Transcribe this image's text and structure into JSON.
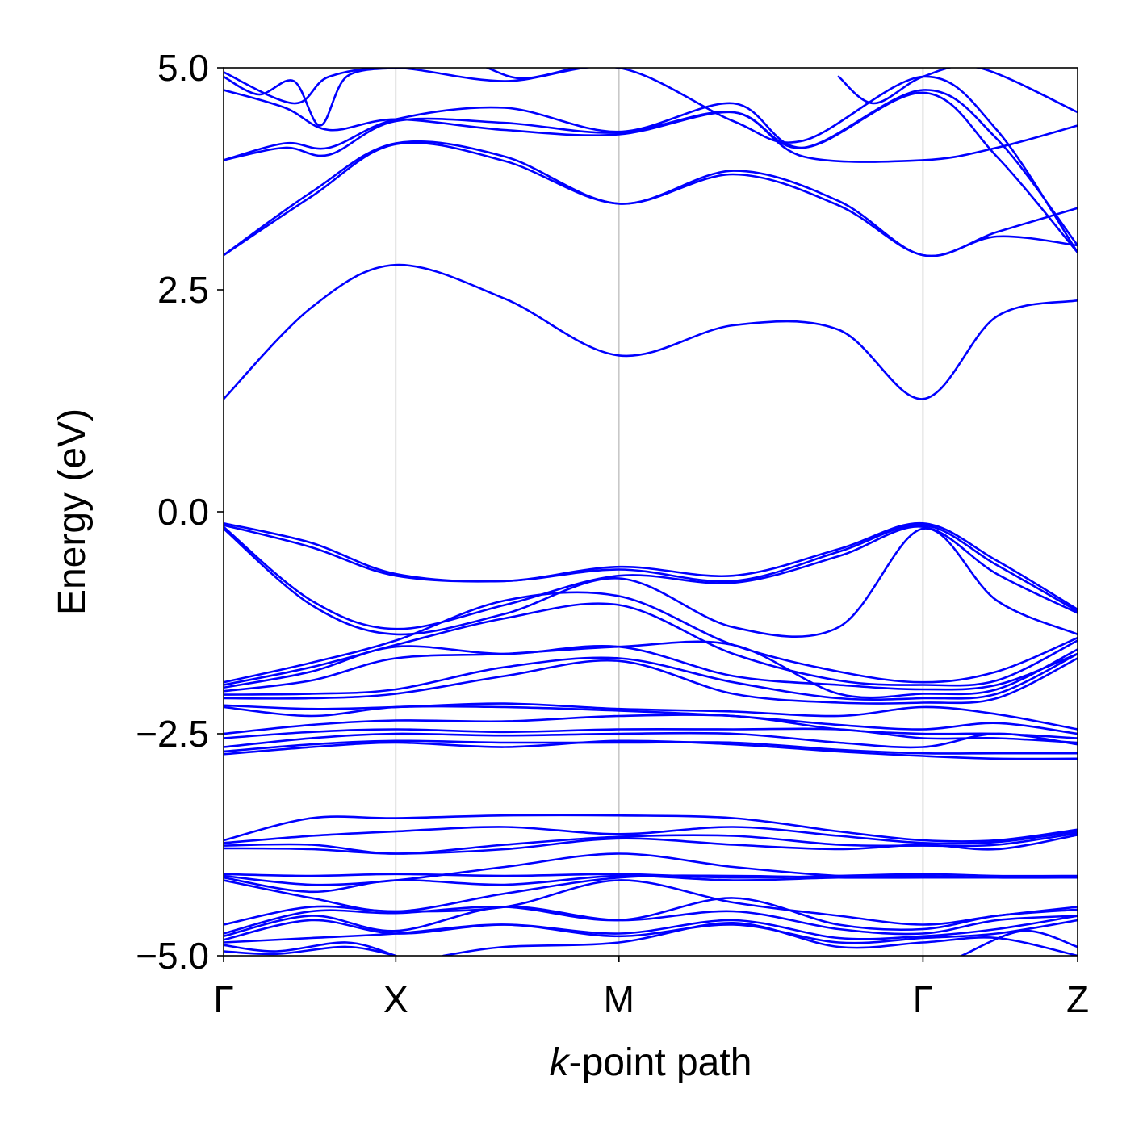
{
  "chart_data": {
    "type": "line",
    "title": "",
    "xlabel_italic": "k",
    "xlabel_rest": "-point path",
    "ylabel": "Energy (eV)",
    "ylim": [
      -5.0,
      5.0
    ],
    "xlim": [
      0,
      4.86
    ],
    "grid": false,
    "legend": "none",
    "yticks": [
      {
        "value": -5.0,
        "label": "−5.0"
      },
      {
        "value": -2.5,
        "label": "−2.5"
      },
      {
        "value": 0.0,
        "label": "0.0"
      },
      {
        "value": 2.5,
        "label": "2.5"
      },
      {
        "value": 5.0,
        "label": "5.0"
      }
    ],
    "high_symmetry_points": [
      {
        "label": "Γ",
        "x": 0.0
      },
      {
        "label": "X",
        "x": 0.98
      },
      {
        "label": "M",
        "x": 2.25
      },
      {
        "label": "Γ",
        "x": 3.98
      },
      {
        "label": "Z",
        "x": 4.86
      }
    ],
    "colors": {
      "bands": "#0000ff",
      "symmetry_lines": "#c8c8c8",
      "axes": "#000000"
    },
    "series": [
      {
        "x": [
          0,
          0.5,
          0.98,
          1.6,
          2.25,
          2.9,
          3.5,
          3.98,
          4.4,
          4.86
        ],
        "y": [
          1.27,
          2.3,
          2.78,
          2.4,
          1.76,
          2.1,
          2.05,
          1.27,
          2.2,
          2.38
        ]
      },
      {
        "x": [
          0,
          0.5,
          0.98,
          1.6,
          2.25,
          2.9,
          3.5,
          3.98,
          4.4,
          4.86
        ],
        "y": [
          2.89,
          3.6,
          4.15,
          4.0,
          3.47,
          3.84,
          3.5,
          2.89,
          3.15,
          3.42
        ]
      },
      {
        "x": [
          0,
          0.5,
          0.98,
          1.6,
          2.25,
          2.9,
          3.5,
          3.98,
          4.4,
          4.86
        ],
        "y": [
          2.89,
          3.55,
          4.14,
          3.95,
          3.47,
          3.8,
          3.45,
          2.89,
          3.1,
          3.0
        ]
      },
      {
        "x": [
          0,
          0.35,
          0.6,
          0.98,
          1.6,
          2.25,
          2.9,
          3.3,
          3.98,
          4.4,
          4.86
        ],
        "y": [
          3.96,
          4.1,
          4.02,
          4.4,
          4.38,
          4.27,
          4.5,
          4.0,
          3.96,
          4.1,
          4.35
        ]
      },
      {
        "x": [
          0,
          0.35,
          0.6,
          0.98,
          1.6,
          2.25,
          2.9,
          3.3,
          3.98,
          4.4,
          4.86
        ],
        "y": [
          3.96,
          4.15,
          4.1,
          4.42,
          4.55,
          4.28,
          4.6,
          4.1,
          4.72,
          4.0,
          2.92
        ]
      },
      {
        "x": [
          0,
          0.35,
          0.6,
          0.98,
          1.6,
          2.25,
          2.9,
          3.3,
          3.98,
          4.4,
          4.86
        ],
        "y": [
          4.75,
          4.55,
          4.3,
          4.42,
          4.3,
          4.25,
          4.5,
          4.1,
          4.75,
          4.2,
          3.0
        ]
      },
      {
        "x": [
          0,
          0.2,
          0.4,
          0.55,
          0.7,
          0.98
        ],
        "y": [
          4.9,
          4.7,
          4.85,
          4.35,
          4.9,
          5.0
        ]
      },
      {
        "x": [
          0,
          0.4,
          0.6,
          0.98,
          1.6,
          2.25,
          2.9,
          3.3,
          3.98,
          4.4,
          4.86
        ],
        "y": [
          4.95,
          4.6,
          4.9,
          5.0,
          4.85,
          5.0,
          4.4,
          4.18,
          4.9,
          4.3,
          2.92
        ]
      },
      {
        "x": [
          1.5,
          1.7,
          2.0
        ],
        "y": [
          5.0,
          4.88,
          5.0
        ]
      },
      {
        "x": [
          3.5,
          3.7,
          3.98,
          4.3,
          4.86
        ],
        "y": [
          4.9,
          4.6,
          4.9,
          5.0,
          4.5
        ]
      },
      {
        "x": [
          0,
          0.5,
          0.98,
          1.6,
          2.25,
          2.9,
          3.5,
          3.98,
          4.4,
          4.86
        ],
        "y": [
          -0.13,
          -0.35,
          -0.7,
          -0.78,
          -0.62,
          -0.72,
          -0.42,
          -0.13,
          -0.55,
          -1.1
        ]
      },
      {
        "x": [
          0,
          0.5,
          0.98,
          1.6,
          2.25,
          2.9,
          3.5,
          3.98,
          4.4,
          4.86
        ],
        "y": [
          -0.15,
          -0.4,
          -0.72,
          -0.78,
          -0.65,
          -0.78,
          -0.45,
          -0.15,
          -0.6,
          -1.12
        ]
      },
      {
        "x": [
          0,
          0.5,
          0.98,
          1.6,
          2.25,
          2.9,
          3.5,
          3.98,
          4.4,
          4.86
        ],
        "y": [
          -0.17,
          -1.0,
          -1.32,
          -1.05,
          -0.72,
          -0.8,
          -0.5,
          -0.17,
          -0.7,
          -1.14
        ]
      },
      {
        "x": [
          0,
          0.5,
          0.98,
          1.6,
          2.25,
          2.9,
          3.5,
          3.98,
          4.4,
          4.86
        ],
        "y": [
          -0.19,
          -1.05,
          -1.38,
          -1.15,
          -0.75,
          -1.3,
          -1.3,
          -0.19,
          -1.0,
          -1.38
        ]
      },
      {
        "x": [
          0,
          0.5,
          0.98,
          1.6,
          2.25,
          2.9,
          3.5,
          3.98,
          4.4,
          4.86
        ],
        "y": [
          -1.92,
          -1.7,
          -1.45,
          -1.0,
          -0.95,
          -1.5,
          -1.8,
          -1.92,
          -1.8,
          -1.42
        ]
      },
      {
        "x": [
          0,
          0.5,
          0.98,
          1.6,
          2.25,
          2.9,
          3.5,
          3.98,
          4.4,
          4.86
        ],
        "y": [
          -1.95,
          -1.75,
          -1.5,
          -1.2,
          -1.05,
          -1.6,
          -1.9,
          -1.95,
          -1.9,
          -1.45
        ]
      },
      {
        "x": [
          0,
          0.5,
          0.98,
          1.6,
          2.25,
          2.9,
          3.5,
          3.98,
          4.4,
          4.86
        ],
        "y": [
          -1.98,
          -1.8,
          -1.52,
          -1.6,
          -1.52,
          -1.85,
          -1.95,
          -2.0,
          -1.95,
          -1.6
        ]
      },
      {
        "x": [
          0,
          0.5,
          0.98,
          1.6,
          2.25,
          2.9,
          3.5,
          3.98,
          4.4,
          4.86
        ],
        "y": [
          -2.02,
          -1.9,
          -1.65,
          -1.6,
          -1.52,
          -1.5,
          -2.05,
          -2.05,
          -2.0,
          -1.55
        ]
      },
      {
        "x": [
          0,
          0.5,
          0.98,
          1.6,
          2.25,
          2.9,
          3.5,
          3.98,
          4.4,
          4.86
        ],
        "y": [
          -2.06,
          -2.05,
          -2.0,
          -1.75,
          -1.65,
          -1.92,
          -2.1,
          -2.1,
          -2.05,
          -1.6
        ]
      },
      {
        "x": [
          0,
          0.5,
          0.98,
          1.6,
          2.25,
          2.9,
          3.5,
          3.98,
          4.4,
          4.86
        ],
        "y": [
          -2.1,
          -2.1,
          -2.05,
          -1.85,
          -1.68,
          -2.05,
          -2.15,
          -2.15,
          -2.1,
          -1.65
        ]
      },
      {
        "x": [
          0,
          0.5,
          0.98,
          1.6,
          2.25,
          2.9,
          3.5,
          3.98,
          4.4,
          4.86
        ],
        "y": [
          -2.18,
          -2.22,
          -2.2,
          -2.16,
          -2.22,
          -2.25,
          -2.3,
          -2.2,
          -2.28,
          -2.45
        ]
      },
      {
        "x": [
          0,
          0.5,
          0.98,
          1.6,
          2.25,
          2.9,
          3.5,
          3.98,
          4.4,
          4.86
        ],
        "y": [
          -2.2,
          -2.3,
          -2.2,
          -2.2,
          -2.24,
          -2.3,
          -2.4,
          -2.45,
          -2.38,
          -2.5
        ]
      },
      {
        "x": [
          0,
          0.5,
          0.98,
          1.6,
          2.25,
          2.9,
          3.5,
          3.98,
          4.4,
          4.86
        ],
        "y": [
          -2.5,
          -2.4,
          -2.35,
          -2.36,
          -2.3,
          -2.3,
          -2.45,
          -2.5,
          -2.5,
          -2.55
        ]
      },
      {
        "x": [
          0,
          0.5,
          0.98,
          1.6,
          2.25,
          2.9,
          3.5,
          3.98,
          4.4,
          4.86
        ],
        "y": [
          -2.55,
          -2.48,
          -2.45,
          -2.48,
          -2.45,
          -2.45,
          -2.45,
          -2.55,
          -2.55,
          -2.6
        ]
      },
      {
        "x": [
          0,
          0.5,
          0.98,
          1.6,
          2.25,
          2.9,
          3.5,
          3.98,
          4.4,
          4.86
        ],
        "y": [
          -2.65,
          -2.55,
          -2.5,
          -2.52,
          -2.5,
          -2.5,
          -2.6,
          -2.65,
          -2.5,
          -2.62
        ]
      },
      {
        "x": [
          0,
          0.5,
          0.98,
          1.6,
          2.25,
          2.9,
          3.5,
          3.98,
          4.4,
          4.86
        ],
        "y": [
          -2.7,
          -2.62,
          -2.58,
          -2.6,
          -2.6,
          -2.6,
          -2.68,
          -2.72,
          -2.72,
          -2.72
        ]
      },
      {
        "x": [
          0,
          0.5,
          0.98,
          1.6,
          2.25,
          2.9,
          3.5,
          3.98,
          4.4,
          4.86
        ],
        "y": [
          -2.73,
          -2.65,
          -2.6,
          -2.65,
          -2.58,
          -2.62,
          -2.7,
          -2.75,
          -2.78,
          -2.78
        ]
      },
      {
        "x": [
          0,
          0.5,
          0.98,
          1.6,
          2.25,
          2.9,
          3.5,
          3.98,
          4.4,
          4.86
        ],
        "y": [
          -3.7,
          -3.45,
          -3.45,
          -3.42,
          -3.42,
          -3.45,
          -3.6,
          -3.7,
          -3.7,
          -3.58
        ]
      },
      {
        "x": [
          0,
          0.5,
          0.98,
          1.6,
          2.25,
          2.9,
          3.5,
          3.98,
          4.4,
          4.86
        ],
        "y": [
          -3.73,
          -3.65,
          -3.6,
          -3.55,
          -3.63,
          -3.55,
          -3.65,
          -3.73,
          -3.72,
          -3.6
        ]
      },
      {
        "x": [
          0,
          0.5,
          0.98,
          1.6,
          2.25,
          2.9,
          3.5,
          3.98,
          4.4,
          4.86
        ],
        "y": [
          -3.76,
          -3.75,
          -3.85,
          -3.75,
          -3.66,
          -3.65,
          -3.75,
          -3.76,
          -3.75,
          -3.62
        ]
      },
      {
        "x": [
          0,
          0.5,
          0.98,
          1.6,
          2.25,
          2.9,
          3.5,
          3.98,
          4.4,
          4.86
        ],
        "y": [
          -3.79,
          -3.8,
          -3.85,
          -3.8,
          -3.68,
          -3.75,
          -3.8,
          -3.75,
          -3.8,
          -3.64
        ]
      },
      {
        "x": [
          0,
          0.5,
          0.98,
          1.6,
          2.25,
          2.9,
          3.5,
          3.98,
          4.4,
          4.86
        ],
        "y": [
          -4.08,
          -4.1,
          -4.08,
          -4.1,
          -4.08,
          -4.12,
          -4.1,
          -4.08,
          -4.1,
          -4.1
        ]
      },
      {
        "x": [
          0,
          0.5,
          0.98,
          1.6,
          2.25,
          2.9,
          3.5,
          3.98,
          4.4,
          4.86
        ],
        "y": [
          -4.1,
          -4.2,
          -4.15,
          -4.0,
          -3.85,
          -4.0,
          -4.1,
          -4.1,
          -4.12,
          -4.12
        ]
      },
      {
        "x": [
          0,
          0.5,
          0.98,
          1.6,
          2.25,
          2.9,
          3.5,
          3.98,
          4.4,
          4.86
        ],
        "y": [
          -4.12,
          -4.28,
          -4.15,
          -4.2,
          -4.1,
          -4.15,
          -4.12,
          -4.12,
          -4.12,
          -4.12
        ]
      },
      {
        "x": [
          0,
          0.5,
          0.98,
          1.6,
          2.25,
          2.9,
          3.5,
          3.98,
          4.4,
          4.86
        ],
        "y": [
          -4.15,
          -4.35,
          -4.5,
          -4.3,
          -4.12,
          -4.1,
          -4.12,
          -4.12,
          -4.12,
          -4.12
        ]
      },
      {
        "x": [
          0,
          0.5,
          0.98,
          1.6,
          2.25,
          2.9,
          3.5,
          3.98,
          4.4,
          4.86
        ],
        "y": [
          -4.65,
          -4.45,
          -4.5,
          -4.45,
          -4.15,
          -4.4,
          -4.55,
          -4.65,
          -4.55,
          -4.45
        ]
      },
      {
        "x": [
          0,
          0.5,
          0.98,
          1.6,
          2.25,
          2.9,
          3.5,
          3.98,
          4.4,
          4.86
        ],
        "y": [
          -4.75,
          -4.5,
          -4.52,
          -4.45,
          -4.6,
          -4.35,
          -4.65,
          -4.7,
          -4.55,
          -4.48
        ]
      },
      {
        "x": [
          0,
          0.5,
          0.98,
          1.6,
          2.25,
          2.9,
          3.5,
          3.98,
          4.4,
          4.86
        ],
        "y": [
          -4.78,
          -4.55,
          -4.72,
          -4.45,
          -4.6,
          -4.5,
          -4.7,
          -4.75,
          -4.6,
          -4.55
        ]
      },
      {
        "x": [
          0,
          0.5,
          0.98,
          1.6,
          2.25,
          2.9,
          3.5,
          3.98,
          4.4,
          4.86
        ],
        "y": [
          -4.82,
          -4.6,
          -4.75,
          -4.65,
          -4.75,
          -4.6,
          -4.8,
          -4.78,
          -4.7,
          -4.55
        ]
      },
      {
        "x": [
          0,
          0.5,
          0.98,
          1.6,
          2.25,
          2.9,
          3.5,
          3.98,
          4.4,
          4.86
        ],
        "y": [
          -4.85,
          -4.8,
          -4.75,
          -4.65,
          -4.78,
          -4.65,
          -4.85,
          -4.8,
          -4.75,
          -4.6
        ]
      },
      {
        "x": [
          0,
          0.3,
          0.7,
          0.98
        ],
        "y": [
          -4.88,
          -4.95,
          -4.85,
          -5.0
        ]
      },
      {
        "x": [
          0,
          0.3,
          0.7,
          0.98
        ],
        "y": [
          -4.95,
          -4.98,
          -4.9,
          -5.0
        ]
      },
      {
        "x": [
          1.25,
          1.6,
          2.25,
          2.9,
          3.5,
          3.98,
          4.4,
          4.86
        ],
        "y": [
          -5.0,
          -4.9,
          -4.85,
          -4.63,
          -4.9,
          -4.85,
          -4.8,
          -5.0
        ]
      },
      {
        "x": [
          4.2,
          4.55,
          4.86
        ],
        "y": [
          -5.0,
          -4.72,
          -4.9
        ]
      }
    ]
  }
}
